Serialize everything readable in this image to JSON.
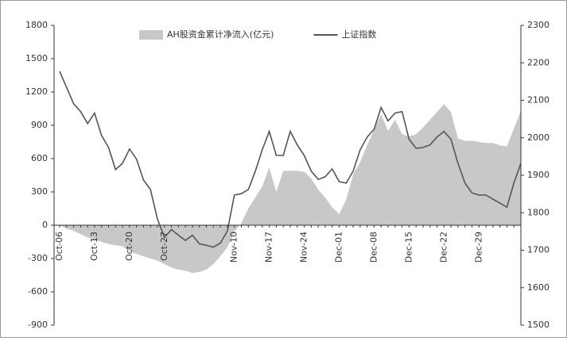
{
  "chart_data": {
    "type": "area_line",
    "categories": [
      "Oct-06",
      null,
      null,
      null,
      null,
      "Oct-13",
      null,
      null,
      null,
      null,
      "Oct-20",
      null,
      null,
      null,
      null,
      "Oct-27",
      null,
      null,
      null,
      null,
      null,
      null,
      null,
      null,
      null,
      "Nov-10",
      null,
      null,
      null,
      null,
      "Nov-17",
      null,
      null,
      null,
      null,
      "Nov-24",
      null,
      null,
      null,
      null,
      "Dec-01",
      null,
      null,
      null,
      null,
      "Dec-08",
      null,
      null,
      null,
      null,
      "Dec-15",
      null,
      null,
      null,
      null,
      "Dec-22",
      null,
      null,
      null,
      null,
      "Dec-29",
      null,
      null,
      null,
      null,
      null,
      null
    ],
    "series": [
      {
        "name": "AH股资金累计净流入(亿元)",
        "kind": "area",
        "color": "#c8c8c8",
        "axis": "y",
        "values": [
          0,
          -30,
          -50,
          -80,
          -110,
          -130,
          -150,
          -170,
          -180,
          -190,
          -230,
          -260,
          -280,
          -300,
          -320,
          -350,
          -380,
          -400,
          -410,
          -430,
          -420,
          -400,
          -350,
          -280,
          -200,
          -60,
          20,
          150,
          250,
          350,
          520,
          300,
          490,
          490,
          490,
          480,
          420,
          320,
          250,
          160,
          100,
          230,
          460,
          570,
          720,
          860,
          1000,
          850,
          950,
          820,
          800,
          820,
          880,
          950,
          1020,
          1090,
          1020,
          780,
          760,
          760,
          750,
          740,
          740,
          720,
          710,
          870,
          1030
        ]
      },
      {
        "name": "上证指数",
        "kind": "line",
        "color": "#555555",
        "axis": "y2",
        "values": [
          2177,
          2134,
          2091,
          2070,
          2038,
          2066,
          2006,
          1974,
          1915,
          1932,
          1970,
          1943,
          1887,
          1862,
          1783,
          1734,
          1755,
          1740,
          1726,
          1740,
          1717,
          1713,
          1708,
          1719,
          1751,
          1847,
          1851,
          1862,
          1911,
          1968,
          2017,
          1953,
          1953,
          2017,
          1981,
          1953,
          1911,
          1889,
          1896,
          1917,
          1883,
          1879,
          1911,
          1968,
          2002,
          2023,
          2081,
          2045,
          2066,
          2070,
          1996,
          1972,
          1974,
          1981,
          2002,
          2017,
          1996,
          1932,
          1879,
          1853,
          1847,
          1847,
          1836,
          1826,
          1815,
          1879,
          1932
        ]
      }
    ],
    "ylim": [
      -900,
      1800
    ],
    "yticks": [
      1800,
      1500,
      1200,
      900,
      600,
      300,
      0,
      -300,
      -600,
      -900
    ],
    "y2lim": [
      1500,
      2300
    ],
    "y2ticks": [
      2300,
      2200,
      2100,
      2000,
      1900,
      1800,
      1700,
      1600,
      1500
    ],
    "legend": "top"
  }
}
